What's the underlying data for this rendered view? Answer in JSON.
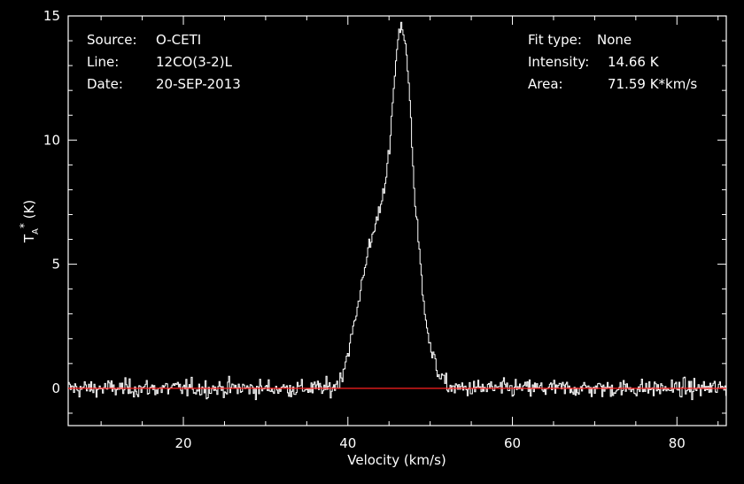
{
  "info": {
    "source_label": "Source:",
    "source_value": "O-CETI",
    "line_label": "Line:",
    "line_value": "12CO(3-2)L",
    "date_label": "Date:",
    "date_value": "20-SEP-2013",
    "fit_label": "Fit type:",
    "fit_value": "None",
    "intensity_label": "Intensity:",
    "intensity_value": "14.66 K",
    "area_label": "Area:",
    "area_value": "71.59 K*km/s"
  },
  "chart_data": {
    "type": "line",
    "xlabel": "Velocity (km/s)",
    "ylabel": "T_A* (K)",
    "xlim": [
      6,
      86
    ],
    "ylim": [
      -1.5,
      15
    ],
    "xticks": [
      20,
      40,
      60,
      80
    ],
    "yticks": [
      0,
      5,
      10,
      15
    ],
    "grid": false,
    "series": [
      {
        "color": "#ffffff",
        "x": [
          38,
          39,
          40,
          41,
          42,
          43,
          44,
          45,
          45.5,
          46,
          46.5,
          47,
          47.5,
          48,
          49,
          50,
          51,
          52,
          53
        ],
        "y": [
          0.0,
          0.3,
          1.5,
          3.0,
          5.0,
          6.2,
          7.5,
          9.5,
          12.0,
          14.0,
          14.66,
          13.8,
          11.5,
          8.0,
          4.0,
          1.5,
          0.6,
          0.1,
          0.0
        ],
        "noise_rms": 0.25
      },
      {
        "color": "#ff2020",
        "x": [
          6,
          86
        ],
        "y": [
          0,
          0
        ]
      }
    ]
  },
  "colors": {
    "background": "#000000",
    "foreground": "#ffffff",
    "baseline": "#ff2020"
  }
}
